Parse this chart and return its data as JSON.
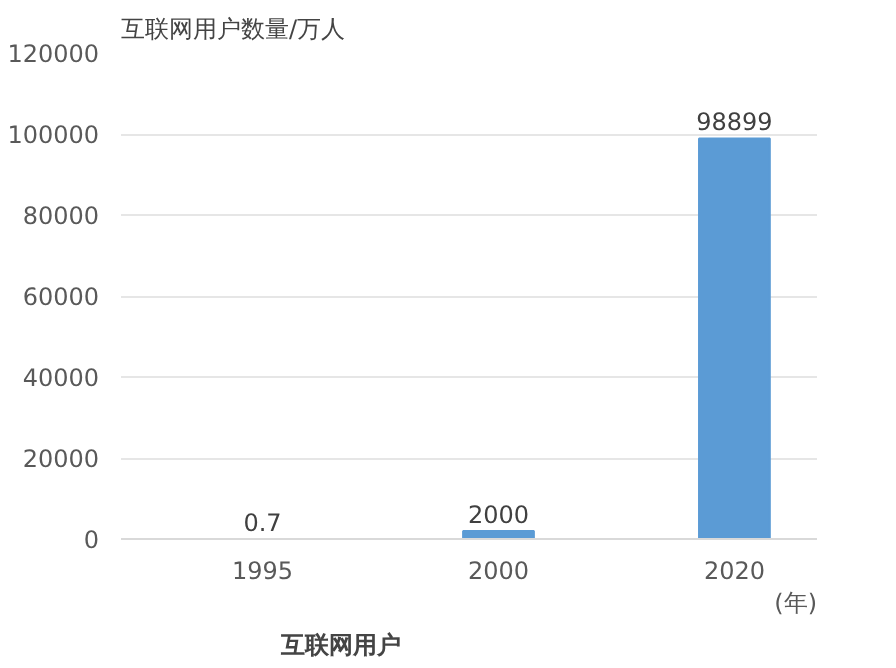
{
  "chart_data": {
    "type": "bar",
    "title": "互联网用户",
    "ylabel": "互联网用户数量/万人",
    "xlabel": "(年)",
    "categories": [
      "1995",
      "2000",
      "2020"
    ],
    "values": [
      0.7,
      2000,
      98899
    ],
    "color": "#5b9bd5",
    "ylim": [
      0,
      120000
    ],
    "yticks": [
      0,
      20000,
      40000,
      60000,
      80000,
      100000,
      120000
    ],
    "grid": "y",
    "data_labels": true
  }
}
